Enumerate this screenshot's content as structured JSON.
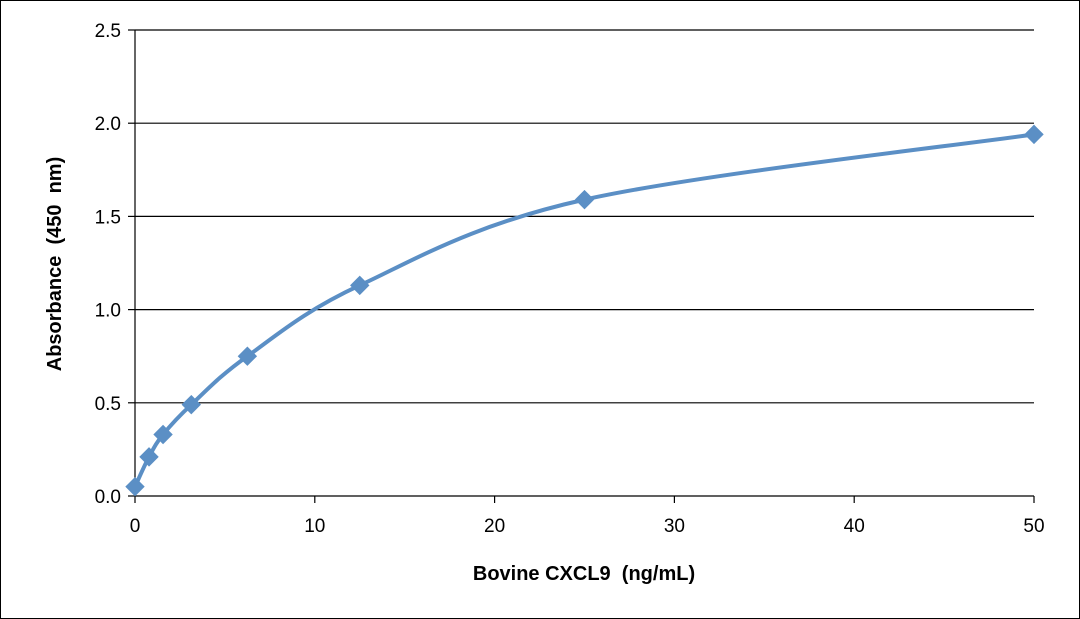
{
  "chart_data": {
    "type": "scatter",
    "title": "",
    "xlabel": "Bovine CXCL9  (ng/mL)",
    "ylabel": "Absorbance  (450  nm)",
    "xlim": [
      0,
      50
    ],
    "ylim": [
      0,
      2.5
    ],
    "x_ticks": [
      0,
      10,
      20,
      30,
      40,
      50
    ],
    "x_tick_labels": [
      "0",
      "10",
      "20",
      "30",
      "40",
      "50"
    ],
    "y_ticks": [
      0,
      0.5,
      1.0,
      1.5,
      2.0,
      2.5
    ],
    "y_tick_labels": [
      "0.0",
      "0.5",
      "1.0",
      "1.5",
      "2.0",
      "2.5"
    ],
    "grid": "horizontal",
    "legend": "none",
    "series": [
      {
        "color": "#5b8fc5",
        "marker": "diamond",
        "line": "smooth",
        "x": [
          0,
          0.78,
          1.56,
          3.13,
          6.25,
          12.5,
          25,
          50
        ],
        "y": [
          0.05,
          0.21,
          0.33,
          0.49,
          0.75,
          1.13,
          1.59,
          1.94
        ]
      }
    ]
  }
}
